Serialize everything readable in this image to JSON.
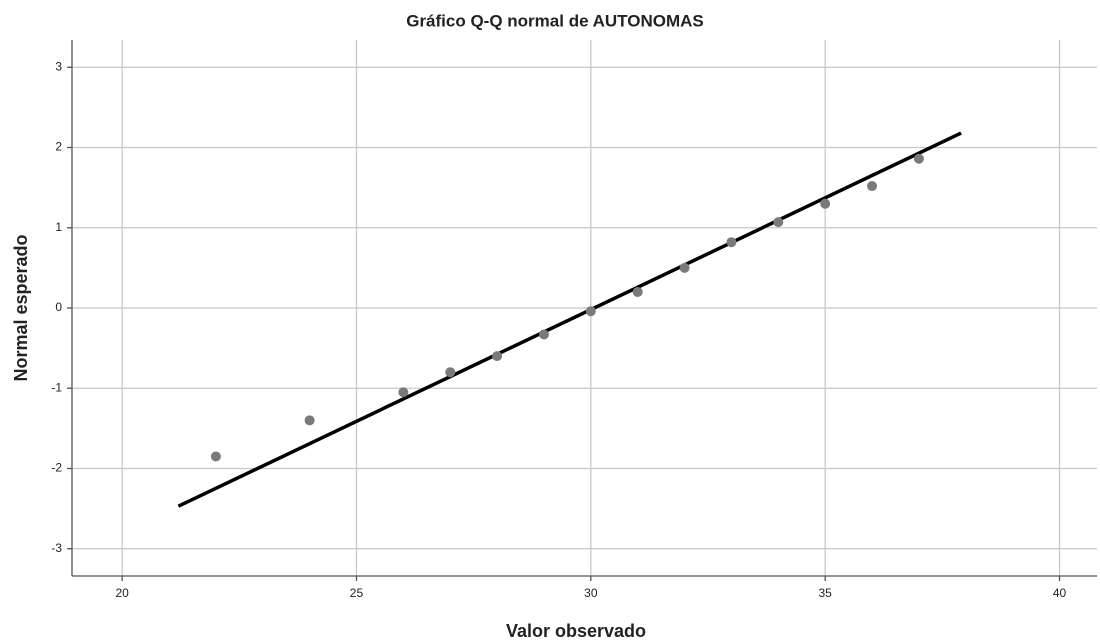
{
  "chart_data": {
    "type": "scatter",
    "title": "Gráfico Q-Q normal de AUTONOMAS",
    "x_label": "Valor observado",
    "y_label": "Normal esperado",
    "x": [
      22,
      24,
      26,
      27,
      28,
      29,
      30,
      31,
      32,
      33,
      34,
      35,
      36,
      37
    ],
    "values": [
      -1.85,
      -1.4,
      -1.05,
      -0.8,
      -0.6,
      -0.33,
      -0.04,
      0.2,
      0.5,
      0.82,
      1.07,
      1.3,
      1.52,
      1.86
    ],
    "color": "#7a7a7a",
    "reference_line": {
      "x": [
        21.2,
        37.9
      ],
      "y": [
        -2.47,
        2.18
      ],
      "color": "#000000"
    },
    "xlim": [
      18.93,
      40.8
    ],
    "xticks": [
      20,
      25,
      30,
      35,
      40
    ],
    "ylim": [
      -3.34,
      3.34
    ],
    "yticks": [
      -3,
      -2,
      -1,
      0,
      1,
      2,
      3
    ],
    "grid": true
  }
}
